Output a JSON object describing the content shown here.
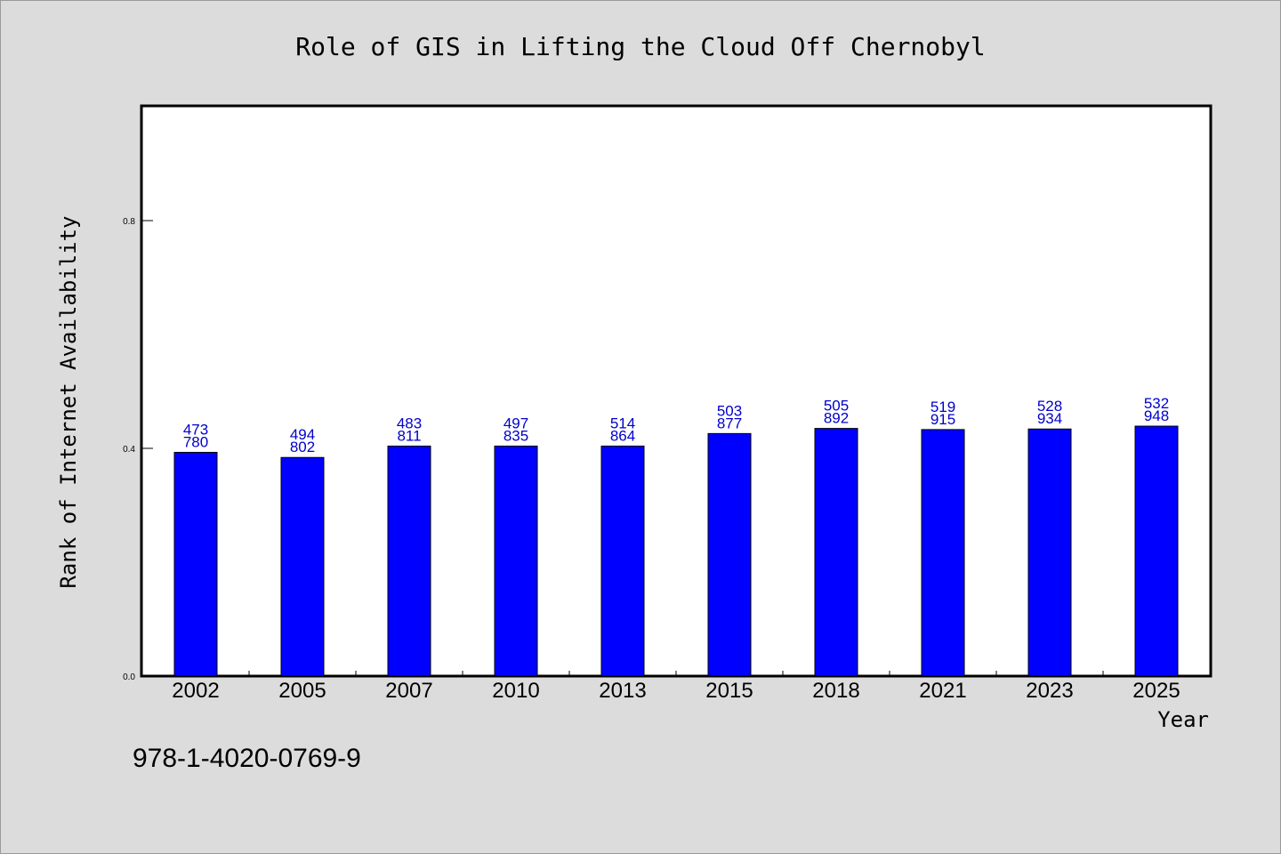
{
  "chart_data": {
    "type": "bar",
    "title": "Role of GIS in Lifting the Cloud Off Chernobyl",
    "xlabel": "Year",
    "ylabel": "Rank of Internet Availability",
    "categories": [
      "2002",
      "2005",
      "2007",
      "2010",
      "2013",
      "2015",
      "2018",
      "2021",
      "2023",
      "2025"
    ],
    "values": [
      0.393,
      0.384,
      0.404,
      0.404,
      0.404,
      0.426,
      0.435,
      0.433,
      0.434,
      0.439
    ],
    "data_labels_top": [
      "473",
      "494",
      "483",
      "497",
      "514",
      "503",
      "505",
      "519",
      "528",
      "532"
    ],
    "data_labels_bottom": [
      "780",
      "802",
      "811",
      "835",
      "864",
      "877",
      "892",
      "915",
      "934",
      "948"
    ],
    "yticks": [
      "0.0",
      "0.4",
      "0.8"
    ],
    "ylim": [
      0,
      1.0
    ],
    "grid": false,
    "bar_color": "#0000ff",
    "label_color": "#0000cc"
  },
  "footer": {
    "isbn": "978-1-4020-0769-9"
  }
}
